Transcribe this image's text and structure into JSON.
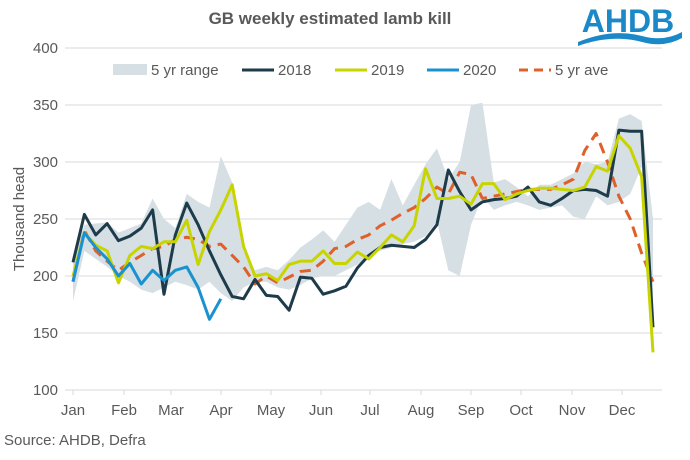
{
  "brand": {
    "logo_text": "AHDB",
    "logo_color": "#1b88c8"
  },
  "source": "Source: AHDB, Defra",
  "chart_data": {
    "type": "line",
    "title": "GB weekly estimated lamb kill",
    "xlabel": "",
    "ylabel": "Thousand head",
    "ylim": [
      100,
      400
    ],
    "yticks": [
      100,
      150,
      200,
      250,
      300,
      350,
      400
    ],
    "grid": true,
    "legend_position": "top",
    "xlim_weeks": [
      1,
      52
    ],
    "month_labels": [
      "Jan",
      "Feb",
      "Mar",
      "Apr",
      "May",
      "Jun",
      "Jul",
      "Aug",
      "Sep",
      "Oct",
      "Nov",
      "Dec"
    ],
    "range": {
      "name": "5 yr range",
      "color": "#d5dfe4",
      "min": [
        178,
        222,
        215,
        208,
        200,
        195,
        188,
        185,
        190,
        195,
        192,
        188,
        195,
        185,
        178,
        190,
        195,
        195,
        190,
        188,
        192,
        198,
        200,
        200,
        205,
        210,
        218,
        222,
        225,
        228,
        230,
        235,
        248,
        205,
        200,
        245,
        270,
        258,
        262,
        265,
        262,
        258,
        260,
        262,
        252,
        250,
        270,
        262,
        265,
        272,
        296,
        180
      ],
      "max": [
        215,
        245,
        246,
        247,
        238,
        242,
        246,
        268,
        250,
        242,
        272,
        265,
        260,
        305,
        282,
        222,
        205,
        208,
        205,
        214,
        225,
        232,
        240,
        230,
        245,
        260,
        265,
        258,
        285,
        262,
        280,
        298,
        312,
        285,
        300,
        350,
        352,
        282,
        285,
        278,
        270,
        280,
        280,
        285,
        290,
        300,
        298,
        300,
        338,
        342,
        336,
        250
      ]
    },
    "series": [
      {
        "name": "2018",
        "color": "#1d3b4a",
        "dash": false,
        "values": [
          212,
          254,
          236,
          246,
          231,
          235,
          242,
          258,
          184,
          236,
          264,
          245,
          222,
          201,
          182,
          180,
          197,
          183,
          182,
          170,
          199,
          198,
          184,
          187,
          191,
          207,
          218,
          225,
          227,
          226,
          225,
          232,
          245,
          293,
          274,
          258,
          265,
          267,
          268,
          270,
          278,
          265,
          262,
          268,
          275,
          276,
          275,
          270,
          328,
          327,
          327,
          155
        ]
      },
      {
        "name": "2019",
        "color": "#c8d400",
        "dash": false,
        "values": [
          200,
          238,
          227,
          222,
          194,
          218,
          226,
          224,
          230,
          230,
          249,
          210,
          239,
          258,
          280,
          226,
          200,
          202,
          196,
          210,
          213,
          213,
          222,
          211,
          211,
          221,
          215,
          225,
          236,
          230,
          244,
          294,
          268,
          268,
          270,
          263,
          281,
          281,
          267,
          272,
          275,
          277,
          277,
          276,
          275,
          278,
          296,
          292,
          323,
          312,
          287,
          133
        ]
      },
      {
        "name": "2020",
        "color": "#1b92d0",
        "dash": false,
        "values": [
          195,
          238,
          225,
          215,
          200,
          211,
          193,
          205,
          196,
          205,
          208,
          190,
          162,
          180
        ]
      },
      {
        "name": "5 yr ave",
        "color": "#e0602a",
        "dash": true,
        "values": [
          195,
          240,
          222,
          213,
          205,
          212,
          218,
          224,
          226,
          232,
          234,
          232,
          226,
          228,
          218,
          208,
          193,
          200,
          194,
          199,
          204,
          205,
          213,
          224,
          226,
          232,
          236,
          244,
          249,
          255,
          260,
          268,
          278,
          272,
          291,
          289,
          268,
          270,
          272,
          274,
          276,
          276,
          276,
          280,
          285,
          310,
          325,
          300,
          270,
          250,
          220,
          195
        ]
      }
    ]
  }
}
